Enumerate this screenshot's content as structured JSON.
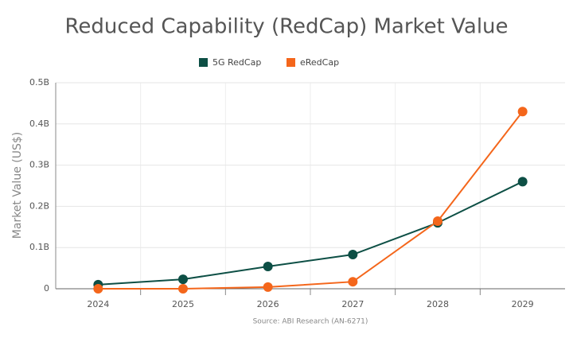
{
  "chart_data": {
    "type": "line",
    "title": "Reduced Capability (RedCap) Market Value",
    "y_label": "Market Value (US$)",
    "source": "Source: ABI Research (AN-6271)",
    "categories": [
      "2024",
      "2025",
      "2026",
      "2027",
      "2028",
      "2029"
    ],
    "series": [
      {
        "name": "5G RedCap",
        "color": "#0d4f45",
        "values": [
          0.01,
          0.023,
          0.054,
          0.083,
          0.16,
          0.26
        ]
      },
      {
        "name": "eRedCap",
        "color": "#f4661b",
        "values": [
          0,
          0,
          0.004,
          0.017,
          0.164,
          0.43
        ]
      }
    ],
    "ylim": [
      0,
      0.5
    ],
    "yticks": [
      0,
      {
        "value": 0.1,
        "label": "0.1B"
      },
      {
        "value": 0.2,
        "label": "0.2B"
      },
      {
        "value": 0.3,
        "label": "0.3B"
      },
      {
        "value": 0.4,
        "label": "0.4B"
      },
      {
        "value": 0.5,
        "label": "0.5B"
      }
    ],
    "grid": true,
    "legend": "top"
  }
}
